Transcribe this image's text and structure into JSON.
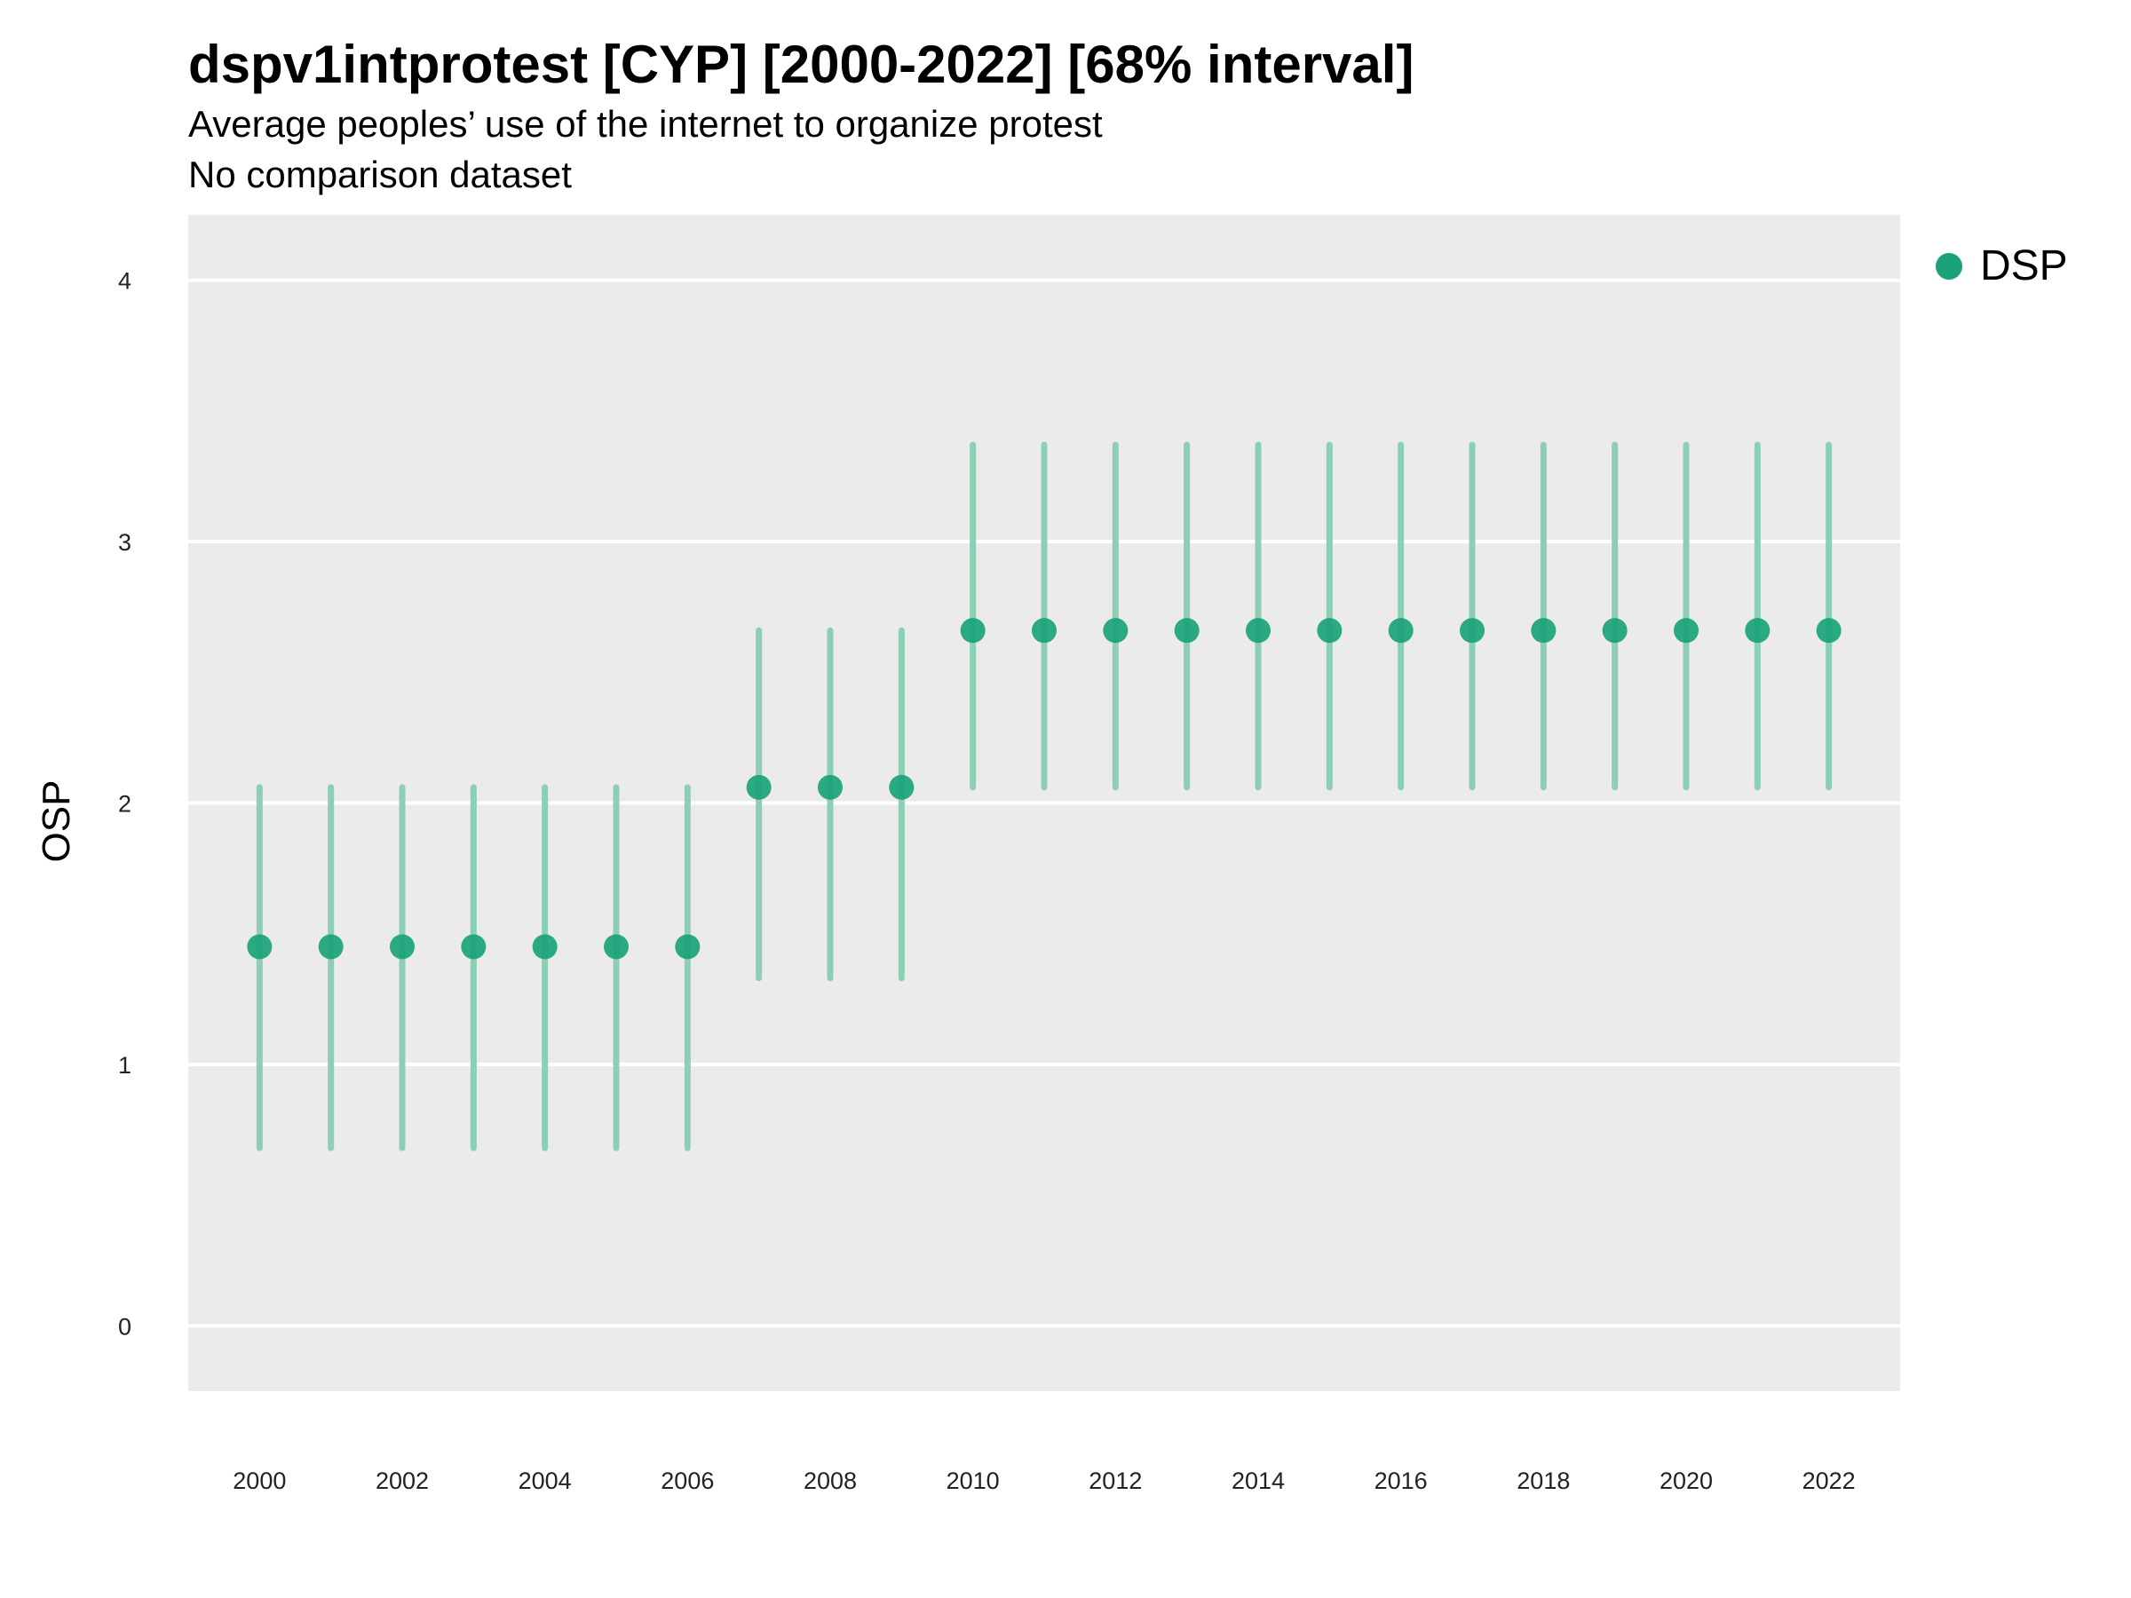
{
  "colors": {
    "series": "#1aa37a",
    "interval": "#8ccfb5",
    "panel": "#ebebeb",
    "grid": "#ffffff"
  },
  "chart_data": {
    "type": "scatter",
    "title": "dspv1intprotest [CYP] [2000-2022] [68% interval]",
    "subtitle": "Average peoples’ use of the internet to organize protest",
    "subtitle2": "No comparison dataset",
    "xlabel": "",
    "ylabel": "OSP",
    "xlim": [
      1999,
      2023
    ],
    "ylim": [
      -0.25,
      4.25
    ],
    "yticks": [
      "0",
      "1",
      "2",
      "3",
      "4"
    ],
    "xticks": [
      "2000",
      "2002",
      "2004",
      "2006",
      "2008",
      "2010",
      "2012",
      "2014",
      "2016",
      "2018",
      "2020",
      "2022"
    ],
    "grid": true,
    "legend_position": "right",
    "series": [
      {
        "name": "DSP",
        "x": [
          2000,
          2001,
          2002,
          2003,
          2004,
          2005,
          2006,
          2007,
          2008,
          2009,
          2010,
          2011,
          2012,
          2013,
          2014,
          2015,
          2016,
          2017,
          2018,
          2019,
          2020,
          2021,
          2022
        ],
        "y": [
          1.45,
          1.45,
          1.45,
          1.45,
          1.45,
          1.45,
          1.45,
          2.06,
          2.06,
          2.06,
          2.66,
          2.66,
          2.66,
          2.66,
          2.66,
          2.66,
          2.66,
          2.66,
          2.66,
          2.66,
          2.66,
          2.66,
          2.66
        ],
        "lower": [
          0.68,
          0.68,
          0.68,
          0.68,
          0.68,
          0.68,
          0.68,
          1.33,
          1.33,
          1.33,
          2.06,
          2.06,
          2.06,
          2.06,
          2.06,
          2.06,
          2.06,
          2.06,
          2.06,
          2.06,
          2.06,
          2.06,
          2.06
        ],
        "upper": [
          2.06,
          2.06,
          2.06,
          2.06,
          2.06,
          2.06,
          2.06,
          2.66,
          2.66,
          2.66,
          3.37,
          3.37,
          3.37,
          3.37,
          3.37,
          3.37,
          3.37,
          3.37,
          3.37,
          3.37,
          3.37,
          3.37,
          3.37
        ]
      }
    ]
  }
}
